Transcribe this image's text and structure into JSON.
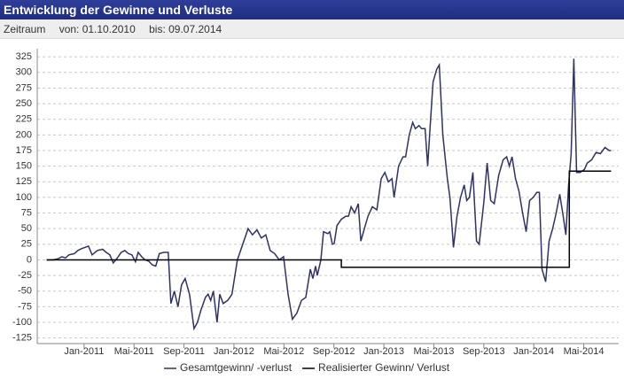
{
  "chart_data": {
    "type": "line",
    "title": "Entwicklung der Gewinne und Verluste",
    "period_label": "Zeitraum",
    "period_from": "von: 01.10.2010",
    "period_to": "bis: 09.07.2014",
    "xlim": [
      -0.75,
      45.8
    ],
    "xticks": [
      {
        "value": 3,
        "label": "Jan-2011"
      },
      {
        "value": 7,
        "label": "Mai-2011"
      },
      {
        "value": 11,
        "label": "Sep-2011"
      },
      {
        "value": 15,
        "label": "Jan-2012"
      },
      {
        "value": 19,
        "label": "Mai-2012"
      },
      {
        "value": 23,
        "label": "Sep-2012"
      },
      {
        "value": 27,
        "label": "Jan-2013"
      },
      {
        "value": 31,
        "label": "Mai-2013"
      },
      {
        "value": 35,
        "label": "Sep-2013"
      },
      {
        "value": 39,
        "label": "Jan-2014"
      },
      {
        "value": 43,
        "label": "Mai-2014"
      }
    ],
    "ylim": [
      -134,
      338
    ],
    "yticks": [
      -125,
      -100,
      -75,
      -50,
      -25,
      0,
      25,
      50,
      75,
      100,
      125,
      150,
      175,
      200,
      225,
      250,
      275,
      300,
      325
    ],
    "grid": true,
    "series": [
      {
        "name": "Gesamtgewinn/ -verlust",
        "color": "#2e3266",
        "x": [
          0,
          0.52,
          0.94,
          1.23,
          1.51,
          1.79,
          2.22,
          2.5,
          2.79,
          3.07,
          3.35,
          3.64,
          4.06,
          4.49,
          4.77,
          5.06,
          5.34,
          5.62,
          5.98,
          6.26,
          6.55,
          6.83,
          7.11,
          7.33,
          7.61,
          7.89,
          8.18,
          8.46,
          8.74,
          9.03,
          9.38,
          9.74,
          9.95,
          10.23,
          10.52,
          10.8,
          11.09,
          11.44,
          11.8,
          12.08,
          12.36,
          12.72,
          12.93,
          13.14,
          13.35,
          13.65,
          13.86,
          14.14,
          14.49,
          14.84,
          15.27,
          16.13,
          16.48,
          16.84,
          17.19,
          17.55,
          17.9,
          18.26,
          18.62,
          18.97,
          19.33,
          19.68,
          20.04,
          20.4,
          20.75,
          21.11,
          21.32,
          21.53,
          21.67,
          21.96,
          22.17,
          22.52,
          22.67,
          22.88,
          23.02,
          23.25,
          23.6,
          23.96,
          24.17,
          24.38,
          24.66,
          24.95,
          25.16,
          25.51,
          25.73,
          26.08,
          26.44,
          26.79,
          27.08,
          27.36,
          27.65,
          27.82,
          28.18,
          28.53,
          28.74,
          29.03,
          29.31,
          29.52,
          29.81,
          30.02,
          30.3,
          30.51,
          30.73,
          30.94,
          31.23,
          31.44,
          31.72,
          32.08,
          32.29,
          32.57,
          32.86,
          33.14,
          33.43,
          33.64,
          33.85,
          34.13,
          34.42,
          34.63,
          34.99,
          35.27,
          35.55,
          35.84,
          36.19,
          36.55,
          36.83,
          37.04,
          37.26,
          37.54,
          37.82,
          38.11,
          38.39,
          38.67,
          38.96,
          39.24,
          39.45,
          39.66,
          39.95,
          40.23,
          40.51,
          40.8,
          41.08,
          41.36,
          41.57,
          41.79,
          42.0,
          42.21,
          42.43,
          42.71,
          43.06,
          43.28,
          43.63,
          43.99,
          44.34,
          44.7,
          45.05,
          45.19
        ],
        "values": [
          0,
          0,
          2,
          5,
          3,
          8,
          10,
          15,
          18,
          20,
          22,
          8,
          15,
          17,
          12,
          8,
          -5,
          2,
          12,
          15,
          10,
          8,
          -3,
          12,
          5,
          0,
          -2,
          -8,
          -10,
          10,
          12,
          12,
          -70,
          -50,
          -75,
          -40,
          -30,
          -55,
          -110,
          -100,
          -80,
          -60,
          -55,
          -65,
          -50,
          -100,
          -55,
          -70,
          -65,
          -55,
          0,
          50,
          40,
          48,
          35,
          40,
          15,
          10,
          0,
          5,
          -55,
          -95,
          -85,
          -65,
          -60,
          -15,
          -30,
          -10,
          -25,
          0,
          45,
          42,
          45,
          25,
          26,
          55,
          65,
          70,
          70,
          85,
          75,
          90,
          30,
          55,
          70,
          85,
          80,
          130,
          140,
          125,
          130,
          100,
          150,
          165,
          165,
          200,
          220,
          210,
          215,
          210,
          210,
          150,
          220,
          285,
          305,
          312,
          200,
          130,
          100,
          20,
          70,
          100,
          120,
          95,
          100,
          140,
          30,
          25,
          90,
          155,
          95,
          90,
          135,
          160,
          165,
          150,
          165,
          130,
          110,
          75,
          45,
          95,
          100,
          108,
          108,
          -15,
          -35,
          30,
          50,
          75,
          105,
          70,
          40,
          120,
          170,
          322,
          140,
          140,
          145,
          155,
          160,
          172,
          170,
          180,
          175,
          175
        ]
      },
      {
        "name": "Realisierter Gewinn/ Verlust",
        "color": "#000000",
        "x": [
          0,
          23.6,
          23.6,
          41.85,
          41.85,
          45.19
        ],
        "values": [
          0,
          0,
          -12,
          -12,
          142,
          142
        ]
      }
    ]
  }
}
